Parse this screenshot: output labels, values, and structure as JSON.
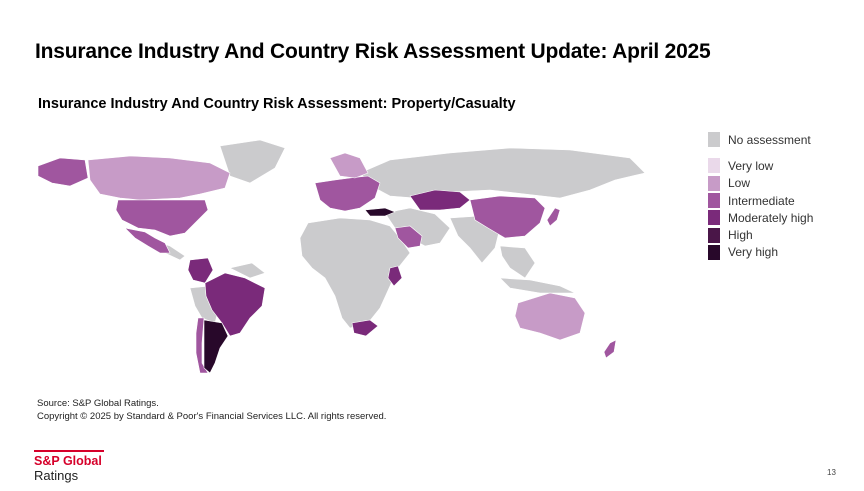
{
  "slide": {
    "title": "Insurance Industry And Country Risk Assessment Update: April 2025",
    "subtitle": "Insurance Industry And Country Risk Assessment: Property/Casualty",
    "page_number": "13"
  },
  "legend": [
    {
      "label": "No assessment",
      "color": "#cbcbcd"
    },
    {
      "label": "Very low",
      "color": "#ead9ea"
    },
    {
      "label": "Low",
      "color": "#c79bc7"
    },
    {
      "label": "Intermediate",
      "color": "#a0569f"
    },
    {
      "label": "Moderately high",
      "color": "#7a2a7a"
    },
    {
      "label": "High",
      "color": "#4a1648"
    },
    {
      "label": "Very high",
      "color": "#28082a"
    }
  ],
  "map_data": {
    "regions": [
      {
        "name": "Canada",
        "level": "Low"
      },
      {
        "name": "United States",
        "level": "Intermediate"
      },
      {
        "name": "Mexico",
        "level": "Intermediate"
      },
      {
        "name": "Colombia",
        "level": "Moderately high"
      },
      {
        "name": "Brazil",
        "level": "Moderately high"
      },
      {
        "name": "Chile",
        "level": "Intermediate"
      },
      {
        "name": "Argentina",
        "level": "Very high"
      },
      {
        "name": "Europe",
        "level": "Intermediate"
      },
      {
        "name": "Turkey",
        "level": "Very high"
      },
      {
        "name": "Kazakhstan",
        "level": "Moderately high"
      },
      {
        "name": "Saudi Arabia",
        "level": "Intermediate"
      },
      {
        "name": "Kenya",
        "level": "Moderately high"
      },
      {
        "name": "South Africa",
        "level": "Moderately high"
      },
      {
        "name": "China",
        "level": "Intermediate"
      },
      {
        "name": "Japan",
        "level": "Intermediate"
      },
      {
        "name": "Australia",
        "level": "Low"
      },
      {
        "name": "New Zealand",
        "level": "Intermediate"
      }
    ]
  },
  "footer": {
    "source": "Source: S&P Global Ratings.",
    "copyright": "Copyright © 2025 by Standard & Poor's Financial Services LLC. All rights reserved.",
    "logo_top": "S&P Global",
    "logo_bottom": "Ratings"
  }
}
